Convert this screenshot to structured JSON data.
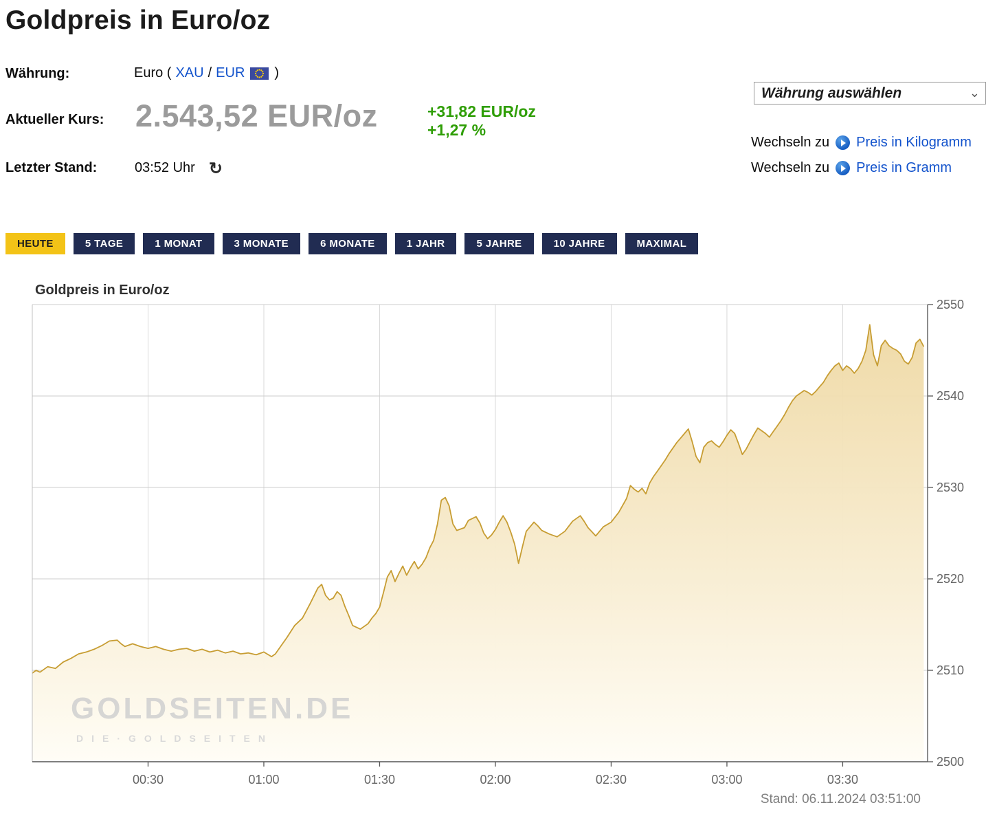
{
  "page": {
    "title": "Goldpreis in Euro/oz"
  },
  "info": {
    "currency_label": "Währung:",
    "currency_prefix": "Euro (",
    "currency_xau": "XAU",
    "currency_sep": "/",
    "currency_eur": "EUR",
    "currency_suffix": ")",
    "price_label": "Aktueller Kurs:",
    "price_value": "2.543,52 EUR/oz",
    "change_abs": "+31,82 EUR/oz",
    "change_pct": "+1,27 %",
    "last_label": "Letzter Stand:",
    "last_value": "03:52 Uhr",
    "refresh_icon": "↻"
  },
  "controls": {
    "currency_select_placeholder": "Währung auswählen",
    "select_chevron": "⌄",
    "switch_kg_label": "Wechseln zu",
    "switch_kg_link": "Preis in Kilogramm",
    "switch_g_label": "Wechseln zu",
    "switch_g_link": "Preis in Gramm"
  },
  "ranges": [
    {
      "label": "HEUTE",
      "active": true
    },
    {
      "label": "5 TAGE",
      "active": false
    },
    {
      "label": "1 MONAT",
      "active": false
    },
    {
      "label": "3 MONATE",
      "active": false
    },
    {
      "label": "6 MONATE",
      "active": false
    },
    {
      "label": "1 JAHR",
      "active": false
    },
    {
      "label": "5 JAHRE",
      "active": false
    },
    {
      "label": "10 JAHRE",
      "active": false
    },
    {
      "label": "MAXIMAL",
      "active": false
    }
  ],
  "chart": {
    "title": "Goldpreis in Euro/oz",
    "stand": "Stand: 06.11.2024 03:51:00",
    "watermark_main": "GOLDSEITEN.DE",
    "watermark_sub": "DIE·GOLDSEITEN"
  },
  "colors": {
    "accent_gold": "#f3c317",
    "navy_button": "#212c52",
    "link_blue": "#1353cc",
    "gain_green": "#2f9e06",
    "line_gold": "#c79d33",
    "fill_top": "#eed7a0",
    "fill_bottom": "#fffdf6"
  },
  "chart_data": {
    "type": "line",
    "title": "Goldpreis in Euro/oz",
    "ylabel": "EUR/oz",
    "ylim": [
      2500,
      2550
    ],
    "y_ticks": [
      2500,
      2510,
      2520,
      2530,
      2540,
      2550
    ],
    "xlim_minutes": [
      0,
      232
    ],
    "x_ticks": [
      [
        30,
        "00:30"
      ],
      [
        60,
        "01:00"
      ],
      [
        90,
        "01:30"
      ],
      [
        120,
        "02:00"
      ],
      [
        150,
        "02:30"
      ],
      [
        180,
        "03:00"
      ],
      [
        210,
        "03:30"
      ]
    ],
    "points_format": "[minutes_after_midnight, EUR_per_oz]",
    "points": [
      [
        0,
        2509.7
      ],
      [
        1,
        2510.0
      ],
      [
        2,
        2509.8
      ],
      [
        4,
        2510.4
      ],
      [
        6,
        2510.2
      ],
      [
        8,
        2510.9
      ],
      [
        10,
        2511.3
      ],
      [
        12,
        2511.8
      ],
      [
        14,
        2512.0
      ],
      [
        16,
        2512.3
      ],
      [
        18,
        2512.7
      ],
      [
        20,
        2513.2
      ],
      [
        22,
        2513.3
      ],
      [
        23,
        2512.9
      ],
      [
        24,
        2512.6
      ],
      [
        26,
        2512.9
      ],
      [
        28,
        2512.6
      ],
      [
        30,
        2512.4
      ],
      [
        32,
        2512.6
      ],
      [
        34,
        2512.3
      ],
      [
        36,
        2512.1
      ],
      [
        38,
        2512.3
      ],
      [
        40,
        2512.4
      ],
      [
        42,
        2512.1
      ],
      [
        44,
        2512.3
      ],
      [
        46,
        2512.0
      ],
      [
        48,
        2512.2
      ],
      [
        50,
        2511.9
      ],
      [
        52,
        2512.1
      ],
      [
        54,
        2511.8
      ],
      [
        56,
        2511.9
      ],
      [
        58,
        2511.7
      ],
      [
        60,
        2512.0
      ],
      [
        62,
        2511.5
      ],
      [
        63,
        2511.8
      ],
      [
        64,
        2512.4
      ],
      [
        66,
        2513.6
      ],
      [
        68,
        2514.9
      ],
      [
        70,
        2515.7
      ],
      [
        71,
        2516.5
      ],
      [
        72,
        2517.3
      ],
      [
        74,
        2519.0
      ],
      [
        75,
        2519.4
      ],
      [
        76,
        2518.2
      ],
      [
        77,
        2517.7
      ],
      [
        78,
        2517.9
      ],
      [
        79,
        2518.6
      ],
      [
        80,
        2518.2
      ],
      [
        81,
        2517.0
      ],
      [
        82,
        2516.0
      ],
      [
        83,
        2514.9
      ],
      [
        85,
        2514.5
      ],
      [
        87,
        2515.1
      ],
      [
        88,
        2515.7
      ],
      [
        89,
        2516.2
      ],
      [
        90,
        2516.9
      ],
      [
        91,
        2518.5
      ],
      [
        92,
        2520.2
      ],
      [
        93,
        2520.9
      ],
      [
        94,
        2519.7
      ],
      [
        95,
        2520.6
      ],
      [
        96,
        2521.4
      ],
      [
        97,
        2520.4
      ],
      [
        98,
        2521.2
      ],
      [
        99,
        2521.9
      ],
      [
        100,
        2521.1
      ],
      [
        101,
        2521.6
      ],
      [
        102,
        2522.3
      ],
      [
        103,
        2523.4
      ],
      [
        104,
        2524.2
      ],
      [
        105,
        2526.0
      ],
      [
        106,
        2528.6
      ],
      [
        107,
        2528.9
      ],
      [
        108,
        2528.0
      ],
      [
        109,
        2526.0
      ],
      [
        110,
        2525.3
      ],
      [
        112,
        2525.6
      ],
      [
        113,
        2526.4
      ],
      [
        115,
        2526.8
      ],
      [
        116,
        2526.1
      ],
      [
        117,
        2525.0
      ],
      [
        118,
        2524.4
      ],
      [
        119,
        2524.8
      ],
      [
        120,
        2525.4
      ],
      [
        121,
        2526.2
      ],
      [
        122,
        2526.9
      ],
      [
        123,
        2526.2
      ],
      [
        124,
        2525.1
      ],
      [
        125,
        2523.8
      ],
      [
        126,
        2521.7
      ],
      [
        127,
        2523.5
      ],
      [
        128,
        2525.2
      ],
      [
        129,
        2525.7
      ],
      [
        130,
        2526.2
      ],
      [
        131,
        2525.8
      ],
      [
        132,
        2525.3
      ],
      [
        134,
        2524.9
      ],
      [
        136,
        2524.6
      ],
      [
        138,
        2525.2
      ],
      [
        140,
        2526.3
      ],
      [
        142,
        2526.9
      ],
      [
        143,
        2526.3
      ],
      [
        144,
        2525.6
      ],
      [
        146,
        2524.7
      ],
      [
        148,
        2525.7
      ],
      [
        150,
        2526.2
      ],
      [
        152,
        2527.3
      ],
      [
        154,
        2528.8
      ],
      [
        155,
        2530.2
      ],
      [
        156,
        2529.8
      ],
      [
        157,
        2529.5
      ],
      [
        158,
        2529.9
      ],
      [
        159,
        2529.3
      ],
      [
        160,
        2530.5
      ],
      [
        161,
        2531.2
      ],
      [
        162,
        2531.8
      ],
      [
        163,
        2532.4
      ],
      [
        164,
        2533.0
      ],
      [
        165,
        2533.7
      ],
      [
        166,
        2534.3
      ],
      [
        167,
        2534.9
      ],
      [
        168,
        2535.4
      ],
      [
        169,
        2535.9
      ],
      [
        170,
        2536.4
      ],
      [
        171,
        2535.0
      ],
      [
        172,
        2533.4
      ],
      [
        173,
        2532.7
      ],
      [
        174,
        2534.4
      ],
      [
        175,
        2534.9
      ],
      [
        176,
        2535.1
      ],
      [
        177,
        2534.7
      ],
      [
        178,
        2534.4
      ],
      [
        179,
        2535.0
      ],
      [
        180,
        2535.7
      ],
      [
        181,
        2536.3
      ],
      [
        182,
        2535.9
      ],
      [
        183,
        2534.8
      ],
      [
        184,
        2533.6
      ],
      [
        185,
        2534.2
      ],
      [
        186,
        2535.0
      ],
      [
        187,
        2535.8
      ],
      [
        188,
        2536.5
      ],
      [
        189,
        2536.2
      ],
      [
        190,
        2535.9
      ],
      [
        191,
        2535.5
      ],
      [
        192,
        2536.1
      ],
      [
        193,
        2536.7
      ],
      [
        194,
        2537.3
      ],
      [
        195,
        2538.0
      ],
      [
        196,
        2538.8
      ],
      [
        197,
        2539.5
      ],
      [
        198,
        2540.0
      ],
      [
        199,
        2540.3
      ],
      [
        200,
        2540.6
      ],
      [
        201,
        2540.4
      ],
      [
        202,
        2540.1
      ],
      [
        203,
        2540.5
      ],
      [
        204,
        2541.0
      ],
      [
        205,
        2541.5
      ],
      [
        206,
        2542.2
      ],
      [
        207,
        2542.8
      ],
      [
        208,
        2543.3
      ],
      [
        209,
        2543.6
      ],
      [
        210,
        2542.8
      ],
      [
        211,
        2543.3
      ],
      [
        212,
        2543.0
      ],
      [
        213,
        2542.5
      ],
      [
        214,
        2543.0
      ],
      [
        215,
        2543.8
      ],
      [
        216,
        2545.0
      ],
      [
        217,
        2547.8
      ],
      [
        218,
        2544.5
      ],
      [
        219,
        2543.3
      ],
      [
        220,
        2545.5
      ],
      [
        221,
        2546.1
      ],
      [
        222,
        2545.5
      ],
      [
        223,
        2545.2
      ],
      [
        224,
        2545.0
      ],
      [
        225,
        2544.6
      ],
      [
        226,
        2543.8
      ],
      [
        227,
        2543.5
      ],
      [
        228,
        2544.2
      ],
      [
        229,
        2545.8
      ],
      [
        230,
        2546.2
      ],
      [
        231,
        2545.4
      ]
    ]
  }
}
